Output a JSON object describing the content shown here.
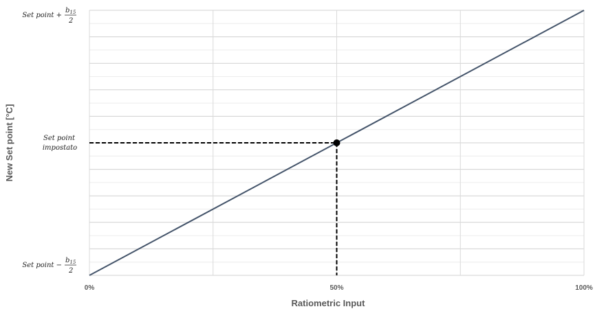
{
  "chart_data": {
    "type": "line",
    "xlabel": "Ratiometric Input",
    "ylabel": "New Set point [°C]",
    "xlim": [
      0,
      100
    ],
    "ylim": [
      -1,
      1
    ],
    "x_ticks": [
      {
        "value": 0,
        "label": "0%"
      },
      {
        "value": 50,
        "label": "50%"
      },
      {
        "value": 100,
        "label": "100%"
      }
    ],
    "y_ticks": {
      "top": {
        "value": 1,
        "prefix": "Set point +",
        "numerator_var": "b",
        "numerator_sub": "15",
        "denominator": "2"
      },
      "middle": {
        "value": 0,
        "line1": "Set point",
        "line2": "impostato"
      },
      "bottom": {
        "value": -1,
        "prefix": "Set point −",
        "numerator_var": "b",
        "numerator_sub": "15",
        "denominator": "2"
      }
    },
    "series": [
      {
        "x": [
          0,
          100
        ],
        "y": [
          -1,
          1
        ],
        "color": "#44546a"
      }
    ],
    "marker": {
      "x": 50,
      "y": 0
    },
    "grid": true,
    "legend": false
  }
}
